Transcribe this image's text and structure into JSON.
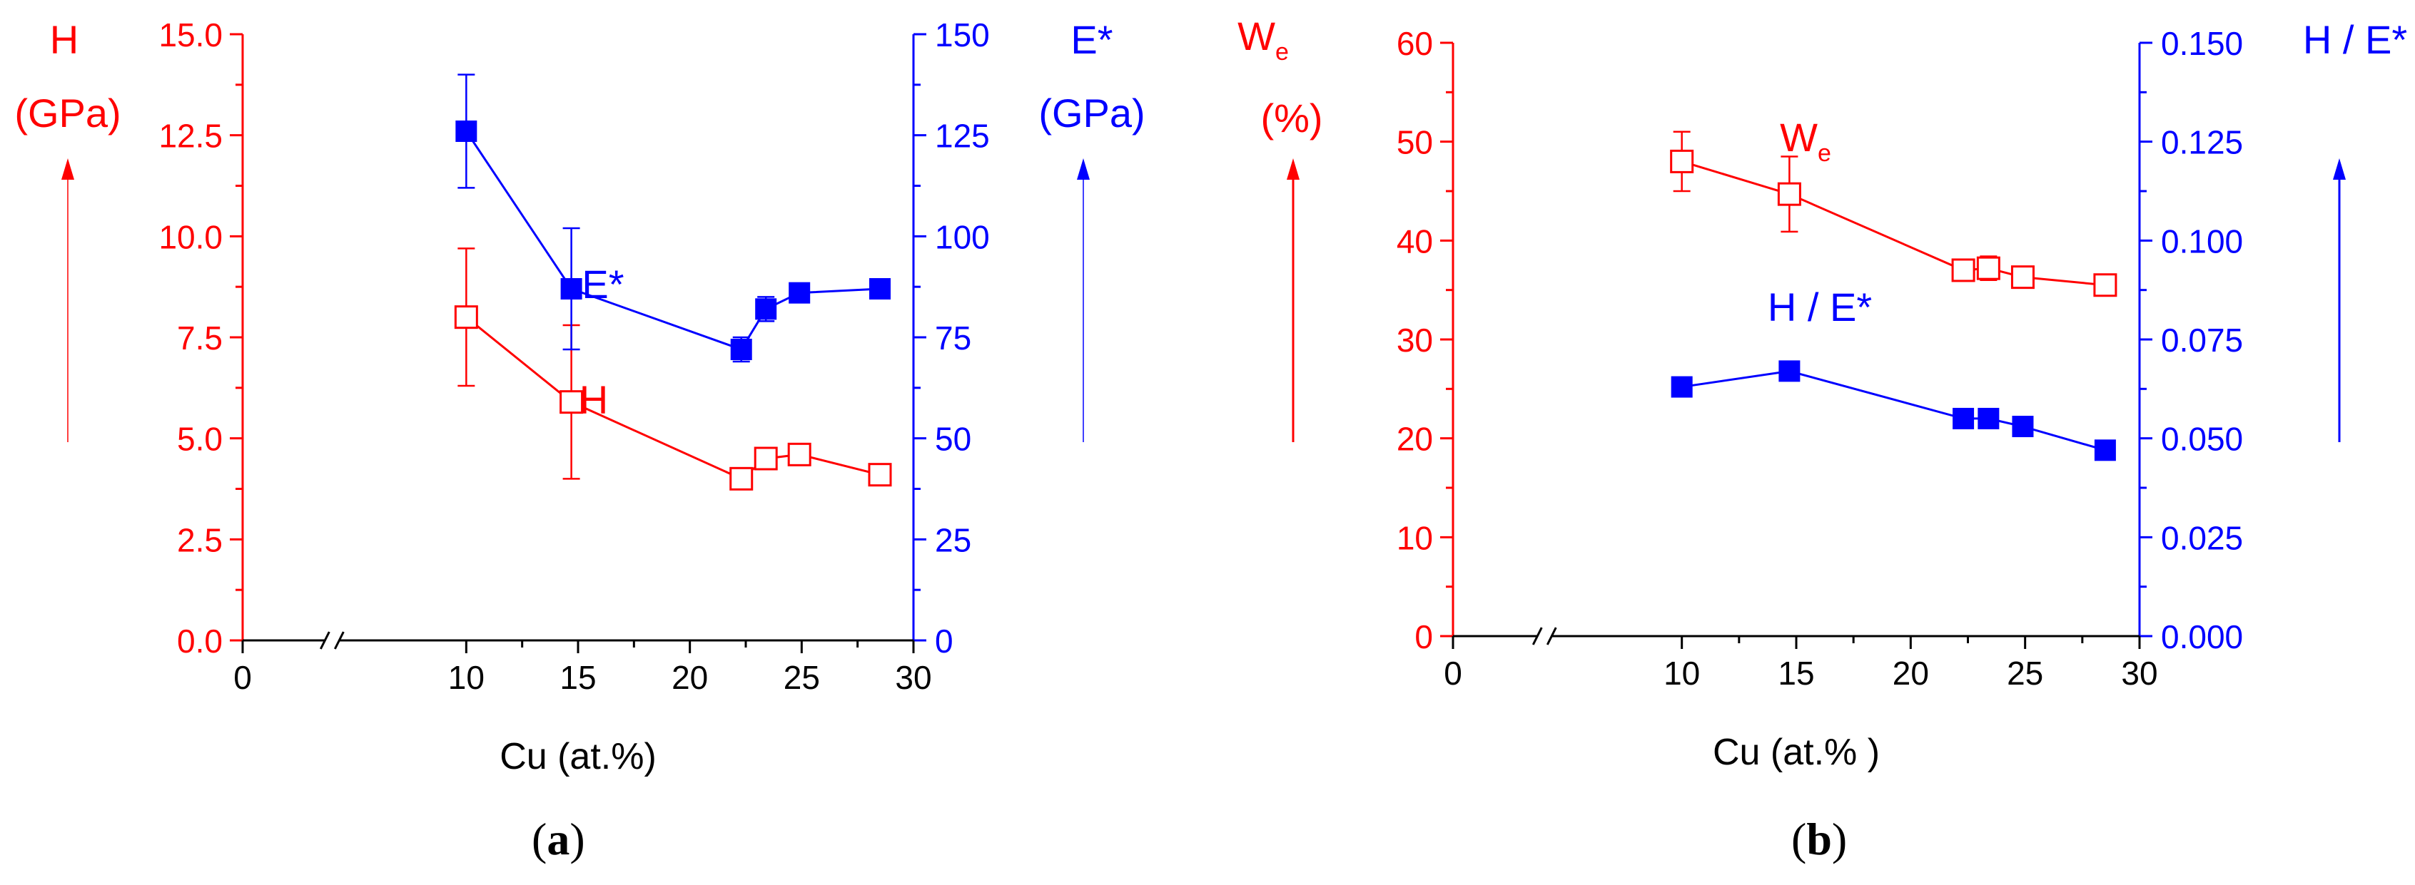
{
  "colors": {
    "left": "#ff0000",
    "right": "#0000ff",
    "axis_x": "#000000"
  },
  "chart_data": [
    {
      "type": "scatter",
      "panel_label": "a",
      "xlabel": "Cu (at.%)",
      "xlim": [
        0,
        30
      ],
      "x_ticks": [
        "0",
        "10",
        "15",
        "20",
        "25",
        "30"
      ],
      "x_axis_break": true,
      "left_axis": {
        "title": "H",
        "unit": "(GPa)",
        "ylim": [
          0,
          15
        ],
        "ticks": [
          "0.0",
          "2.5",
          "5.0",
          "7.5",
          "10.0",
          "12.5",
          "15.0"
        ]
      },
      "right_axis": {
        "title": "E*",
        "unit": "(GPa)",
        "ylim": [
          0,
          150
        ],
        "ticks": [
          "0",
          "25",
          "50",
          "75",
          "100",
          "125",
          "150"
        ]
      },
      "series": [
        {
          "name": "H",
          "axis": "left",
          "marker": "open-square",
          "color": "#ff0000",
          "x": [
            10,
            14.7,
            22.3,
            23.4,
            24.9,
            28.5
          ],
          "y": [
            8.0,
            5.9,
            4.0,
            4.5,
            4.6,
            4.1
          ],
          "err": [
            1.7,
            1.9,
            0,
            0.2,
            0.1,
            0
          ]
        },
        {
          "name": "E*",
          "axis": "right",
          "marker": "filled-square",
          "color": "#0000ff",
          "x": [
            10,
            14.7,
            22.3,
            23.4,
            24.9,
            28.5
          ],
          "y": [
            126,
            87,
            72,
            82,
            86,
            87
          ],
          "err": [
            14,
            15,
            3,
            3,
            2,
            0
          ]
        }
      ],
      "annotations": [
        {
          "text": "E*",
          "series": "E*"
        },
        {
          "text": "H",
          "series": "H"
        }
      ]
    },
    {
      "type": "scatter",
      "panel_label": "b",
      "xlabel": "Cu (at.% )",
      "xlim": [
        0,
        30
      ],
      "x_ticks": [
        "0",
        "10",
        "15",
        "20",
        "25",
        "30"
      ],
      "x_axis_break": true,
      "left_axis": {
        "title": "W",
        "title_sub": "e",
        "unit": "(%)",
        "ylim": [
          0,
          60
        ],
        "ticks": [
          "0",
          "10",
          "20",
          "30",
          "40",
          "50",
          "60"
        ]
      },
      "right_axis": {
        "title": "H / E*",
        "unit": "",
        "ylim": [
          0,
          0.15
        ],
        "ticks": [
          "0.000",
          "0.025",
          "0.050",
          "0.075",
          "0.100",
          "0.125",
          "0.150"
        ]
      },
      "series": [
        {
          "name": "We",
          "axis": "left",
          "marker": "open-square",
          "color": "#ff0000",
          "x": [
            10,
            14.7,
            22.3,
            23.4,
            24.9,
            28.5
          ],
          "y": [
            48,
            44.7,
            37,
            37.2,
            36.3,
            35.5
          ],
          "err": [
            3,
            3.8,
            0,
            1.2,
            0,
            0
          ]
        },
        {
          "name": "H/E*",
          "axis": "right",
          "marker": "filled-square",
          "color": "#0000ff",
          "x": [
            10,
            14.7,
            22.3,
            23.4,
            24.9,
            28.5
          ],
          "y": [
            0.063,
            0.067,
            0.055,
            0.055,
            0.053,
            0.047
          ],
          "err": [
            0,
            0,
            0,
            0,
            0,
            0
          ]
        }
      ],
      "annotations": [
        {
          "text": "W",
          "sub": "e",
          "series": "We"
        },
        {
          "text": "H / E*",
          "series": "H/E*"
        }
      ]
    }
  ]
}
